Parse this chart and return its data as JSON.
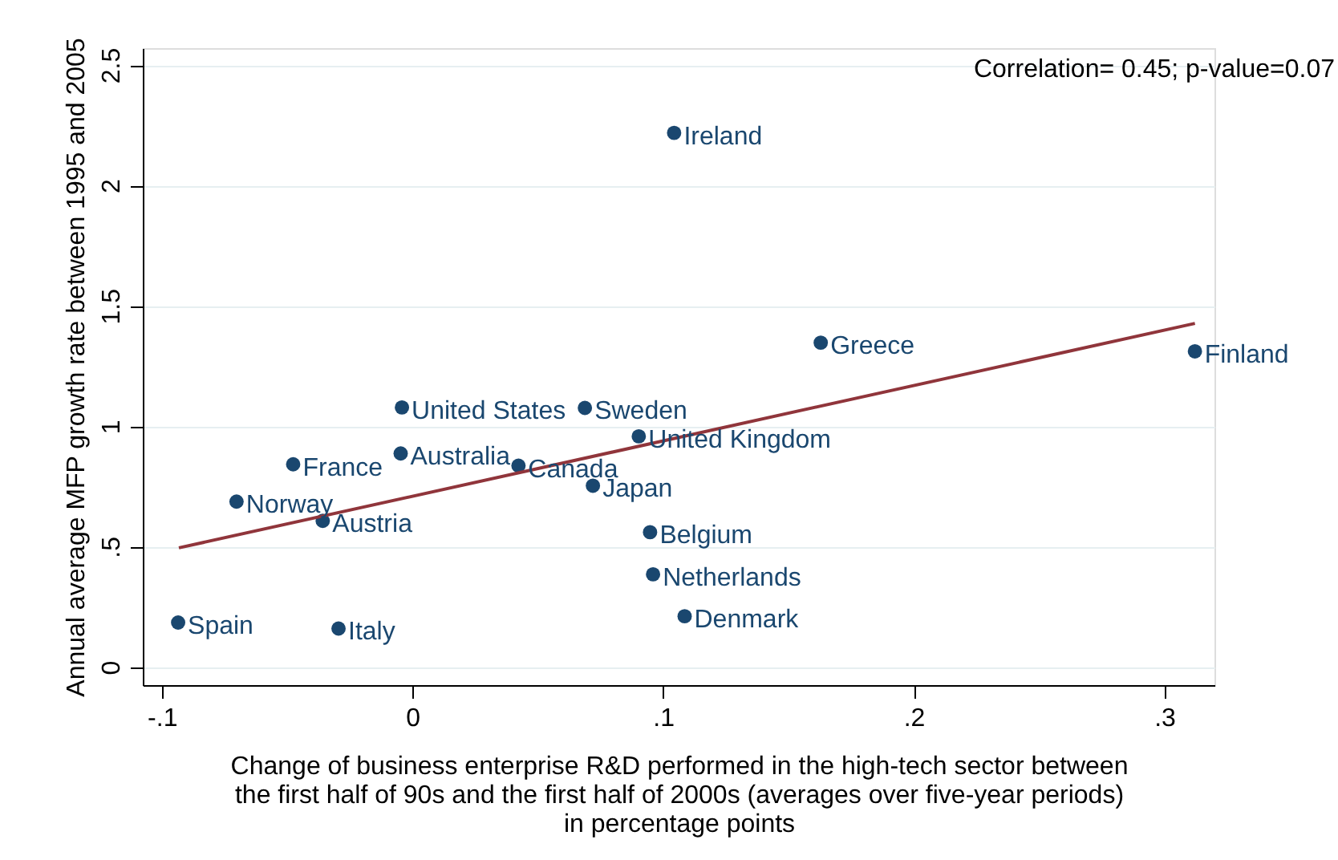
{
  "chart_data": {
    "type": "scatter",
    "xlabel": [
      "Change of business enterprise R&D performed in the high-tech sector between",
      "the first half of 90s and the first half of 2000s (averages over five-year periods)",
      "in percentage points"
    ],
    "ylabel": "Annual average MFP growth rate between 1995 and 2005",
    "xlim": [
      -0.1076,
      0.32
    ],
    "ylim": [
      -0.075,
      2.57
    ],
    "xticks": [
      {
        "value": -0.1,
        "label": "-.1"
      },
      {
        "value": 0,
        "label": "0"
      },
      {
        "value": 0.1,
        "label": ".1"
      },
      {
        "value": 0.2,
        "label": ".2"
      },
      {
        "value": 0.3,
        "label": ".3"
      }
    ],
    "yticks": [
      {
        "value": 0,
        "label": "0"
      },
      {
        "value": 0.5,
        "label": ".5"
      },
      {
        "value": 1,
        "label": "1"
      },
      {
        "value": 1.5,
        "label": "1.5"
      },
      {
        "value": 2,
        "label": "2"
      },
      {
        "value": 2.5,
        "label": "2.5"
      }
    ],
    "grid": "y",
    "series": [
      {
        "type": "scatter",
        "marker": "circle",
        "color": "#1a476f",
        "x": [
          -0.0935,
          -0.0295,
          -0.0702,
          -0.0358,
          -0.0476,
          -0.0042,
          -0.0047,
          0.0423,
          0.0688,
          0.072,
          0.0903,
          0.0948,
          0.096,
          0.1086,
          0.1044,
          0.1629,
          0.3122
        ],
        "values": [
          0.185,
          0.16,
          0.687,
          0.607,
          0.842,
          1.078,
          0.887,
          0.836,
          1.076,
          0.753,
          0.958,
          0.56,
          0.385,
          0.211,
          2.218,
          1.347,
          1.311
        ]
      },
      {
        "type": "line",
        "color": "#90353b",
        "line_style": "solid",
        "x": [
          -0.0932,
          0.3122
        ],
        "values": [
          0.495,
          1.427
        ]
      }
    ],
    "annotations": [
      {
        "text": "Spain",
        "x": -0.0935,
        "y": 0.185
      },
      {
        "text": "Italy",
        "x": -0.0295,
        "y": 0.16
      },
      {
        "text": "Norway",
        "x": -0.0702,
        "y": 0.687
      },
      {
        "text": "Austria",
        "x": -0.0358,
        "y": 0.607
      },
      {
        "text": "France",
        "x": -0.0476,
        "y": 0.842
      },
      {
        "text": "United States",
        "x": -0.0042,
        "y": 1.078
      },
      {
        "text": "Australia",
        "x": -0.0047,
        "y": 0.887
      },
      {
        "text": "Canada",
        "x": 0.0423,
        "y": 0.836
      },
      {
        "text": "Sweden",
        "x": 0.0688,
        "y": 1.076
      },
      {
        "text": "Japan",
        "x": 0.072,
        "y": 0.753
      },
      {
        "text": "United Kingdom",
        "x": 0.0903,
        "y": 0.958
      },
      {
        "text": "Belgium",
        "x": 0.0948,
        "y": 0.56
      },
      {
        "text": "Netherlands",
        "x": 0.096,
        "y": 0.385
      },
      {
        "text": "Denmark",
        "x": 0.1086,
        "y": 0.211
      },
      {
        "text": "Ireland",
        "x": 0.1044,
        "y": 2.218
      },
      {
        "text": "Greece",
        "x": 0.1629,
        "y": 1.347
      },
      {
        "text": "Finland",
        "x": 0.3122,
        "y": 1.311
      },
      "Correlation= 0.45; p-value=0.07"
    ]
  }
}
